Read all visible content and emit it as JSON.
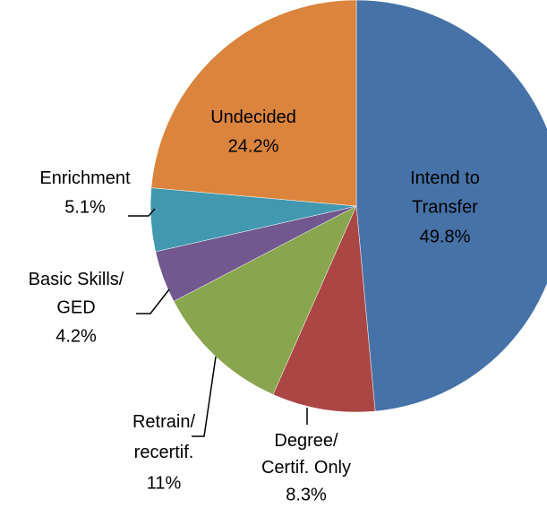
{
  "chart_data": {
    "type": "pie",
    "categories": [
      "Intend to\nTransfer",
      "Degree/\nCertif. Only",
      "Retrain/\nrecertif.",
      "Basic Skills/\nGED",
      "Enrichment",
      "Undecided"
    ],
    "values": [
      49.8,
      8.3,
      11,
      4.2,
      5.1,
      24.2
    ],
    "value_labels": [
      "49.8%",
      "8.3%",
      "11%",
      "4.2%",
      "5.1%",
      "24.2%"
    ],
    "colors": [
      "#4672a8",
      "#aa4643",
      "#89a54e",
      "#71588f",
      "#4198af",
      "#db843d"
    ]
  }
}
